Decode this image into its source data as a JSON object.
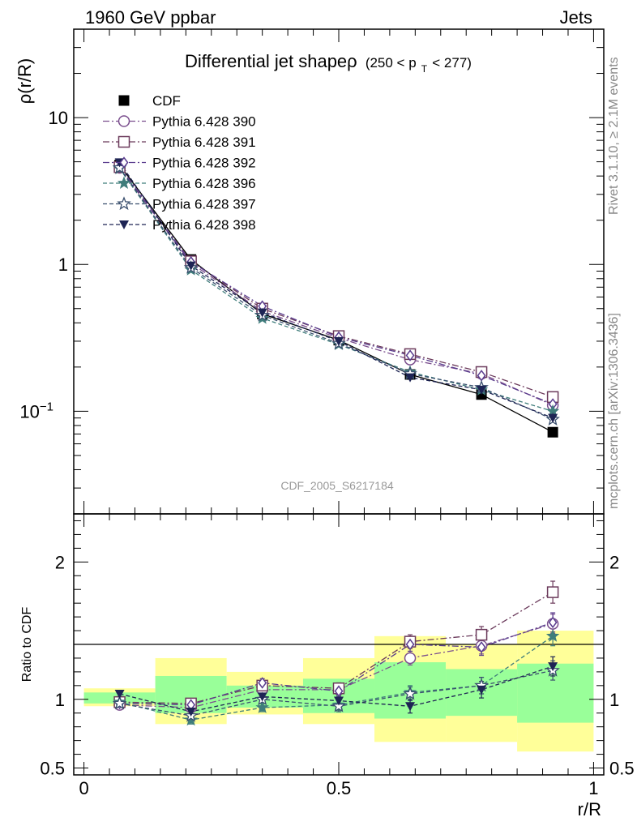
{
  "header": {
    "left": "1960 GeV ppbar",
    "right": "Jets"
  },
  "side_labels": {
    "rivet": "Rivet 3.1.10, ≥ 2.1M events",
    "mcplots": "mcplots.cern.ch [arXiv:1306.3436]"
  },
  "watermark": "CDF_2005_S6217184",
  "chart_data": [
    {
      "type": "line",
      "title_main": "Differential jet shapeρ",
      "title_range": "(250 < p",
      "title_sub": "T",
      "title_end": " < 277)",
      "ylabel": "ρ(r/R)",
      "yscale": "log",
      "ylim": [
        0.02,
        40
      ],
      "xlim": [
        -0.02,
        1.02
      ],
      "yticks": [
        {
          "v": 10,
          "label": "10"
        },
        {
          "v": 1,
          "label": "1"
        },
        {
          "v": 0.1,
          "label": "10",
          "exp": "−1"
        }
      ],
      "x": [
        0.07,
        0.21,
        0.35,
        0.5,
        0.64,
        0.78,
        0.92
      ],
      "series": [
        {
          "name": "CDF",
          "color": "#000000",
          "marker": "square-filled",
          "dash": "none",
          "values": [
            4.75,
            1.08,
            0.46,
            0.305,
            0.178,
            0.13,
            0.072
          ]
        },
        {
          "name": "Pythia 6.428 390",
          "color": "#7b4f8e",
          "marker": "circle-open",
          "dash": "8 3 2 3",
          "values": [
            4.55,
            1.02,
            0.48,
            0.315,
            0.225,
            0.18,
            0.11
          ]
        },
        {
          "name": "Pythia 6.428 391",
          "color": "#6b3a5b",
          "marker": "square-open",
          "dash": "8 3 2 3",
          "values": [
            4.6,
            1.05,
            0.5,
            0.325,
            0.245,
            0.185,
            0.125
          ]
        },
        {
          "name": "Pythia 6.428 392",
          "color": "#5a3d8e",
          "marker": "diamond-open",
          "dash": "8 3 2 3",
          "values": [
            4.62,
            1.04,
            0.52,
            0.32,
            0.24,
            0.175,
            0.112
          ]
        },
        {
          "name": "Pythia 6.428 396",
          "color": "#3f7d7b",
          "marker": "star-filled",
          "dash": "5 3",
          "values": [
            4.5,
            0.92,
            0.43,
            0.285,
            0.185,
            0.14,
            0.1
          ]
        },
        {
          "name": "Pythia 6.428 397",
          "color": "#3a4f6e",
          "marker": "star-open",
          "dash": "5 3",
          "values": [
            4.55,
            0.95,
            0.45,
            0.29,
            0.18,
            0.145,
            0.088
          ]
        },
        {
          "name": "Pythia 6.428 398",
          "color": "#1e2454",
          "marker": "triangle-down-filled",
          "dash": "5 3",
          "values": [
            4.95,
            0.98,
            0.47,
            0.3,
            0.17,
            0.14,
            0.09
          ]
        }
      ]
    },
    {
      "type": "line",
      "ylabel": "Ratio to CDF",
      "xlabel": "r/R",
      "ylim": [
        0.45,
        2.35
      ],
      "xlim": [
        -0.02,
        1.02
      ],
      "yticks": [
        {
          "v": 2,
          "label": "2"
        },
        {
          "v": 1,
          "label": "1"
        },
        {
          "v": 0.5,
          "label": "0.5"
        }
      ],
      "xticks": [
        {
          "v": 0,
          "label": "0"
        },
        {
          "v": 0.5,
          "label": "0.5"
        },
        {
          "v": 1,
          "label": "1"
        }
      ],
      "bins": [
        [
          0,
          0.14
        ],
        [
          0.14,
          0.28
        ],
        [
          0.28,
          0.43
        ],
        [
          0.43,
          0.57
        ],
        [
          0.57,
          0.71
        ],
        [
          0.71,
          0.85
        ],
        [
          0.85,
          1.0
        ]
      ],
      "yellow_band": [
        [
          0.95,
          1.08
        ],
        [
          0.82,
          1.3
        ],
        [
          0.89,
          1.2
        ],
        [
          0.82,
          1.3
        ],
        [
          0.69,
          1.46
        ],
        [
          0.69,
          1.4
        ],
        [
          0.62,
          1.5
        ]
      ],
      "green_band": [
        [
          0.97,
          1.05
        ],
        [
          0.9,
          1.17
        ],
        [
          0.94,
          1.1
        ],
        [
          0.9,
          1.15
        ],
        [
          0.86,
          1.27
        ],
        [
          0.88,
          1.22
        ],
        [
          0.83,
          1.26
        ]
      ],
      "x": [
        0.07,
        0.21,
        0.35,
        0.5,
        0.64,
        0.78,
        0.92
      ],
      "series": [
        {
          "name": "Pythia 6.428 390",
          "values": [
            0.96,
            0.94,
            1.07,
            1.07,
            1.3,
            1.39,
            1.55
          ],
          "err": [
            0.02,
            0.03,
            0.03,
            0.04,
            0.05,
            0.06,
            0.07
          ]
        },
        {
          "name": "Pythia 6.428 391",
          "values": [
            0.98,
            0.97,
            1.1,
            1.08,
            1.42,
            1.47,
            1.78
          ],
          "err": [
            0.02,
            0.03,
            0.03,
            0.04,
            0.05,
            0.06,
            0.08
          ]
        },
        {
          "name": "Pythia 6.428 392",
          "values": [
            0.97,
            0.96,
            1.12,
            1.06,
            1.4,
            1.38,
            1.56
          ],
          "err": [
            0.02,
            0.03,
            0.03,
            0.04,
            0.05,
            0.06,
            0.07
          ]
        },
        {
          "name": "Pythia 6.428 396",
          "values": [
            0.98,
            0.85,
            0.94,
            0.96,
            1.05,
            1.1,
            1.46
          ],
          "err": [
            0.02,
            0.03,
            0.03,
            0.04,
            0.05,
            0.06,
            0.07
          ]
        },
        {
          "name": "Pythia 6.428 397",
          "values": [
            0.97,
            0.88,
            1.0,
            0.95,
            1.04,
            1.1,
            1.21
          ],
          "err": [
            0.02,
            0.03,
            0.03,
            0.04,
            0.05,
            0.06,
            0.07
          ]
        },
        {
          "name": "Pythia 6.428 398",
          "values": [
            1.04,
            0.91,
            1.02,
            0.99,
            0.95,
            1.07,
            1.24
          ],
          "err": [
            0.02,
            0.03,
            0.03,
            0.04,
            0.05,
            0.06,
            0.07
          ]
        }
      ]
    }
  ]
}
